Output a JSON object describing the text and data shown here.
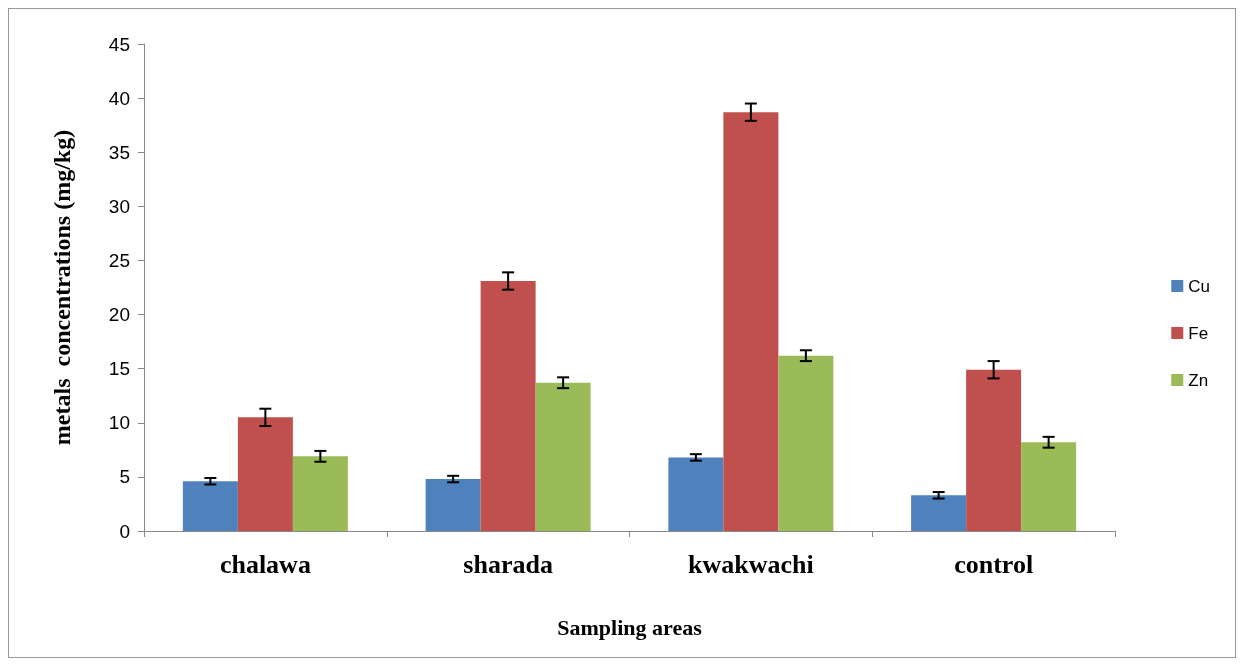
{
  "chart_data": {
    "type": "bar",
    "xlabel": "Sampling areas",
    "ylabel": "metals  concentrations (mg/kg)",
    "categories": [
      "chalawa",
      "sharada",
      "kwakwachi",
      "control"
    ],
    "series": [
      {
        "name": "Cu",
        "color": "#4f81bd",
        "values": [
          4.6,
          4.8,
          6.8,
          3.3
        ],
        "errors": [
          0.3,
          0.3,
          0.3,
          0.3
        ]
      },
      {
        "name": "Fe",
        "color": "#c0504d",
        "values": [
          10.5,
          23.1,
          38.7,
          14.9
        ],
        "errors": [
          0.8,
          0.8,
          0.8,
          0.8
        ]
      },
      {
        "name": "Zn",
        "color": "#9bbb59",
        "values": [
          6.9,
          13.7,
          16.2,
          8.2
        ],
        "errors": [
          0.5,
          0.5,
          0.5,
          0.5
        ]
      }
    ],
    "ylim": [
      0,
      45
    ],
    "yticks": [
      0,
      5,
      10,
      15,
      20,
      25,
      30,
      35,
      40,
      45
    ],
    "grid": false,
    "legend": "right"
  }
}
